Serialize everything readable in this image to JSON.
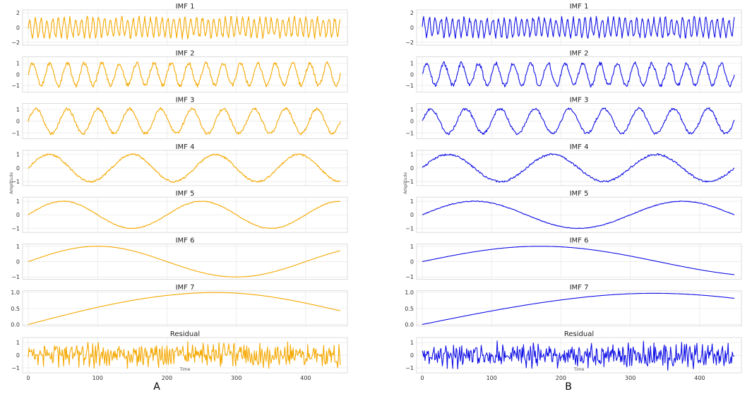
{
  "figure": {
    "labels": [
      "A",
      "B"
    ],
    "ylabel": "Amplitude",
    "xlabel": "Time",
    "colors": {
      "A": "#f5a800",
      "B": "#1010e6"
    }
  },
  "chart_data": [
    {
      "type": "line",
      "panel": "A",
      "color": "#f5a800",
      "xlabel": "Time",
      "ylabel": "Amplitude",
      "xlim": [
        0,
        450
      ],
      "xticks": [
        0,
        100,
        200,
        300,
        400
      ],
      "grid": true,
      "subplots": [
        {
          "title": "IMF 1",
          "yticks": [
            -2,
            0,
            2
          ],
          "ytick_labels": [
            "−2",
            "0",
            "2"
          ],
          "ylim": [
            -2.4,
            2.4
          ],
          "period": 8.3,
          "amplitude": 1.25,
          "noise": 0.35
        },
        {
          "title": "IMF 2",
          "yticks": [
            -1,
            0,
            1
          ],
          "ytick_labels": [
            "−1",
            "0",
            "1"
          ],
          "ylim": [
            -1.6,
            1.6
          ],
          "period": 25,
          "amplitude": 1.0,
          "noise": 0.18
        },
        {
          "title": "IMF 3",
          "yticks": [
            -1,
            0,
            1
          ],
          "ytick_labels": [
            "−1",
            "0",
            "1"
          ],
          "ylim": [
            -1.5,
            1.5
          ],
          "period": 45,
          "amplitude": 1.05,
          "noise": 0.12
        },
        {
          "title": "IMF 4",
          "yticks": [
            -1,
            0,
            1
          ],
          "ytick_labels": [
            "−1",
            "0",
            "1"
          ],
          "ylim": [
            -1.3,
            1.3
          ],
          "period": 120,
          "amplitude": 1.0,
          "noise": 0.07
        },
        {
          "title": "IMF 5",
          "yticks": [
            -1,
            0,
            1
          ],
          "ytick_labels": [
            "−1",
            "0",
            "1"
          ],
          "ylim": [
            -1.3,
            1.3
          ],
          "period": 200,
          "amplitude": 1.0,
          "noise": 0.03
        },
        {
          "title": "IMF 6",
          "yticks": [
            -1,
            0,
            1
          ],
          "ytick_labels": [
            "−1",
            "0",
            "1"
          ],
          "ylim": [
            -1.15,
            1.15
          ],
          "period": 400,
          "amplitude": 1.0,
          "noise": 0.0
        },
        {
          "title": "IMF 7",
          "yticks": [
            0.0,
            0.5,
            1.0
          ],
          "ytick_labels": [
            "0.0",
            "0.5",
            "1.0"
          ],
          "ylim": [
            -0.05,
            1.05
          ],
          "period": 1000,
          "amplitude": 1.0,
          "noise": 0.0,
          "decay": 0.3
        },
        {
          "title": "Residual",
          "yticks": [
            -1,
            0,
            1
          ],
          "ytick_labels": [
            "−1",
            "0",
            "1"
          ],
          "ylim": [
            -1.4,
            1.4
          ],
          "period": 0,
          "amplitude": 0.6,
          "noise": 0.45
        }
      ]
    },
    {
      "type": "line",
      "panel": "B",
      "color": "#1010e6",
      "xlabel": "Time",
      "ylabel": "Amplitude",
      "xlim": [
        0,
        450
      ],
      "xticks": [
        0,
        100,
        200,
        300,
        400
      ],
      "grid": true,
      "subplots": [
        {
          "title": "IMF 1",
          "yticks": [
            -2,
            0,
            2
          ],
          "ytick_labels": [
            "−2",
            "0",
            "2"
          ],
          "ylim": [
            -2.4,
            2.4
          ],
          "period": 8.3,
          "amplitude": 1.2,
          "noise": 0.35
        },
        {
          "title": "IMF 2",
          "yticks": [
            -1,
            0,
            1
          ],
          "ytick_labels": [
            "−1",
            "0",
            "1"
          ],
          "ylim": [
            -1.6,
            1.6
          ],
          "period": 25,
          "amplitude": 1.0,
          "noise": 0.18
        },
        {
          "title": "IMF 3",
          "yticks": [
            -1,
            0,
            1
          ],
          "ytick_labels": [
            "−1",
            "0",
            "1"
          ],
          "ylim": [
            -1.5,
            1.5
          ],
          "period": 50,
          "amplitude": 1.05,
          "noise": 0.12
        },
        {
          "title": "IMF 4",
          "yticks": [
            -1,
            0,
            1
          ],
          "ytick_labels": [
            "−1",
            "0",
            "1"
          ],
          "ylim": [
            -1.3,
            1.3
          ],
          "period": 150,
          "amplitude": 1.0,
          "noise": 0.07
        },
        {
          "title": "IMF 5",
          "yticks": [
            -1,
            0,
            1
          ],
          "ytick_labels": [
            "−1",
            "0",
            "1"
          ],
          "ylim": [
            -1.3,
            1.3
          ],
          "period": 300,
          "amplitude": 1.0,
          "noise": 0.03
        },
        {
          "title": "IMF 6",
          "yticks": [
            -1,
            0,
            1
          ],
          "ytick_labels": [
            "−1",
            "0",
            "1"
          ],
          "ylim": [
            -1.15,
            1.15
          ],
          "period": 680,
          "amplitude": 1.0,
          "noise": 0.0
        },
        {
          "title": "IMF 7",
          "yticks": [
            0.0,
            0.5,
            1.0
          ],
          "ytick_labels": [
            "0.0",
            "0.5",
            "1.0"
          ],
          "ylim": [
            -0.05,
            1.05
          ],
          "period": 1300,
          "amplitude": 1.0,
          "noise": 0.0,
          "decay": 0.15
        },
        {
          "title": "Residual",
          "yticks": [
            -1,
            0,
            1
          ],
          "ytick_labels": [
            "−1",
            "0",
            "1"
          ],
          "ylim": [
            -1.4,
            1.4
          ],
          "period": 0,
          "amplitude": 0.6,
          "noise": 0.45
        }
      ]
    }
  ]
}
